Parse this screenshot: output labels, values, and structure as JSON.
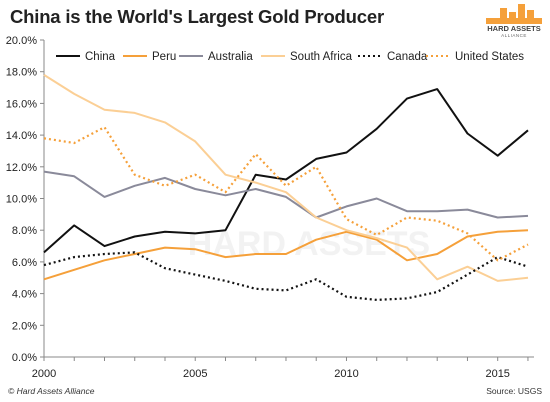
{
  "header": {
    "title": "China is the World's Largest Gold Producer",
    "logo_text": "HARD ASSETS",
    "logo_sub": "ALLIANCE",
    "watermark": "HARD ASSETS"
  },
  "footer": {
    "left": "© Hard Assets Alliance",
    "right": "Source: USGS"
  },
  "chart_data": {
    "type": "line",
    "title": "China is the World's Largest Gold Producer",
    "x": [
      2000,
      2001,
      2002,
      2003,
      2004,
      2005,
      2006,
      2007,
      2008,
      2009,
      2010,
      2011,
      2012,
      2013,
      2014,
      2015,
      2016
    ],
    "xlim": [
      2000,
      2016.2
    ],
    "ylim": [
      0,
      20
    ],
    "xticks": [
      2000,
      2005,
      2010,
      2015
    ],
    "yticks": [
      0,
      2,
      4,
      6,
      8,
      10,
      12,
      14,
      16,
      18,
      20
    ],
    "ytick_labels": [
      "0.0%",
      "2.0%",
      "4.0%",
      "6.0%",
      "8.0%",
      "10.0%",
      "12.0%",
      "14.0%",
      "16.0%",
      "18.0%",
      "20.0%"
    ],
    "legend_position": "top",
    "grid": false,
    "series": [
      {
        "name": "China",
        "color": "#111111",
        "dash": "solid",
        "values": [
          6.6,
          8.3,
          7.0,
          7.6,
          7.9,
          7.8,
          8.0,
          11.5,
          11.2,
          12.5,
          12.9,
          14.4,
          16.3,
          16.9,
          14.1,
          12.7,
          14.3
        ]
      },
      {
        "name": "Peru",
        "color": "#f5a03a",
        "dash": "solid",
        "values": [
          4.9,
          5.5,
          6.1,
          6.5,
          6.9,
          6.8,
          6.3,
          6.5,
          6.5,
          7.4,
          7.9,
          7.4,
          6.1,
          6.5,
          7.6,
          7.9,
          8.0
        ]
      },
      {
        "name": "Australia",
        "color": "#8a8a9a",
        "dash": "solid",
        "values": [
          11.7,
          11.4,
          10.1,
          10.8,
          11.3,
          10.6,
          10.2,
          10.6,
          10.1,
          8.8,
          9.5,
          10.0,
          9.2,
          9.2,
          9.3,
          8.8,
          8.9
        ]
      },
      {
        "name": "South Africa",
        "color": "#fbcf95",
        "dash": "solid",
        "values": [
          17.8,
          16.6,
          15.6,
          15.4,
          14.8,
          13.6,
          11.5,
          11.0,
          10.4,
          8.8,
          8.0,
          7.5,
          6.9,
          4.9,
          5.7,
          4.8,
          5.0
        ]
      },
      {
        "name": "Canada",
        "color": "#111111",
        "dash": "dot",
        "values": [
          5.8,
          6.3,
          6.5,
          6.6,
          5.6,
          5.2,
          4.8,
          4.3,
          4.2,
          4.9,
          3.8,
          3.6,
          3.7,
          4.1,
          5.2,
          6.3,
          5.7
        ]
      },
      {
        "name": "United States",
        "color": "#f5a03a",
        "dash": "dot",
        "values": [
          13.8,
          13.5,
          14.5,
          11.5,
          10.8,
          11.5,
          10.4,
          12.8,
          10.8,
          12.0,
          8.7,
          7.7,
          8.8,
          8.6,
          7.8,
          6.1,
          7.1
        ]
      }
    ]
  }
}
